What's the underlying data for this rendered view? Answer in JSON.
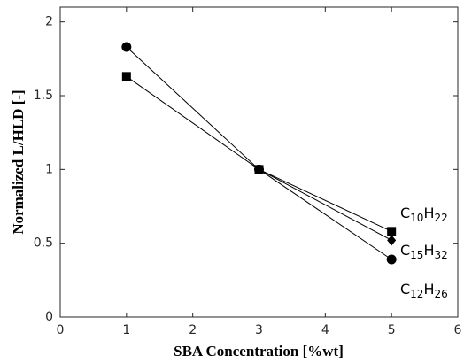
{
  "chart_data": {
    "type": "line",
    "xlabel": "SBA Concentration [%wt]",
    "ylabel": "Normalized L/HLD [-]",
    "xlim": [
      0,
      6
    ],
    "xticks": [
      0,
      1,
      2,
      3,
      4,
      5,
      6
    ],
    "ylim": [
      0,
      2.1
    ],
    "yticks": [
      0,
      0.5,
      1,
      1.5,
      2
    ],
    "series": [
      {
        "name": "C10H22",
        "marker": "square",
        "color": "#000000",
        "x": [
          1,
          3,
          5
        ],
        "values": [
          1.63,
          1.0,
          0.58
        ]
      },
      {
        "name": "C15H32",
        "marker": "diamond",
        "color": "#000000",
        "x": [
          3,
          5
        ],
        "values": [
          1.0,
          0.52
        ]
      },
      {
        "name": "C12H26",
        "marker": "circle",
        "color": "#000000",
        "x": [
          1,
          3,
          5
        ],
        "values": [
          1.83,
          1.0,
          0.39
        ]
      }
    ]
  }
}
